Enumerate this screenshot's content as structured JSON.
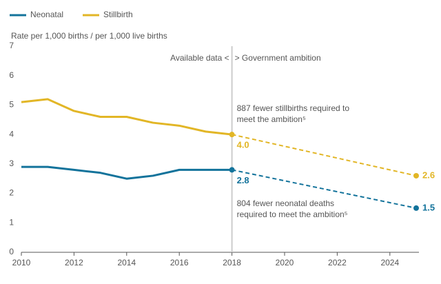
{
  "chart_data": {
    "type": "line",
    "y_axis_label": "Rate per 1,000 births / per 1,000 live births",
    "x": [
      2010,
      2011,
      2012,
      2013,
      2014,
      2015,
      2016,
      2017,
      2018
    ],
    "series": [
      {
        "name": "Neonatal",
        "color": "#13739b",
        "values": [
          2.9,
          2.9,
          2.8,
          2.7,
          2.5,
          2.6,
          2.8,
          2.8,
          2.8
        ],
        "projection": {
          "x": [
            2018,
            2025
          ],
          "values": [
            2.8,
            1.5
          ],
          "value_labels": [
            "2.8",
            "1.5"
          ]
        }
      },
      {
        "name": "Stillbirth",
        "color": "#e2b626",
        "values": [
          5.1,
          5.2,
          4.8,
          4.6,
          4.6,
          4.4,
          4.3,
          4.1,
          4.0
        ],
        "projection": {
          "x": [
            2018,
            2025
          ],
          "values": [
            4.0,
            2.6
          ],
          "value_labels": [
            "4.0",
            "2.6"
          ]
        }
      }
    ],
    "divider": {
      "x": 2018,
      "left_label": "Available data <",
      "right_label": "> Government ambition"
    },
    "annotations": [
      {
        "lines": [
          "887 fewer stillbirths required to",
          "meet the ambition⁵"
        ]
      },
      {
        "lines": [
          "804 fewer neonatal deaths",
          "required to meet the ambition⁵"
        ]
      }
    ],
    "xlim": [
      2010,
      2025
    ],
    "xticks": [
      2010,
      2012,
      2014,
      2016,
      2018,
      2020,
      2022,
      2024
    ],
    "ylim": [
      0,
      7
    ],
    "yticks": [
      0,
      1,
      2,
      3,
      4,
      5,
      6,
      7
    ],
    "grid": false
  }
}
